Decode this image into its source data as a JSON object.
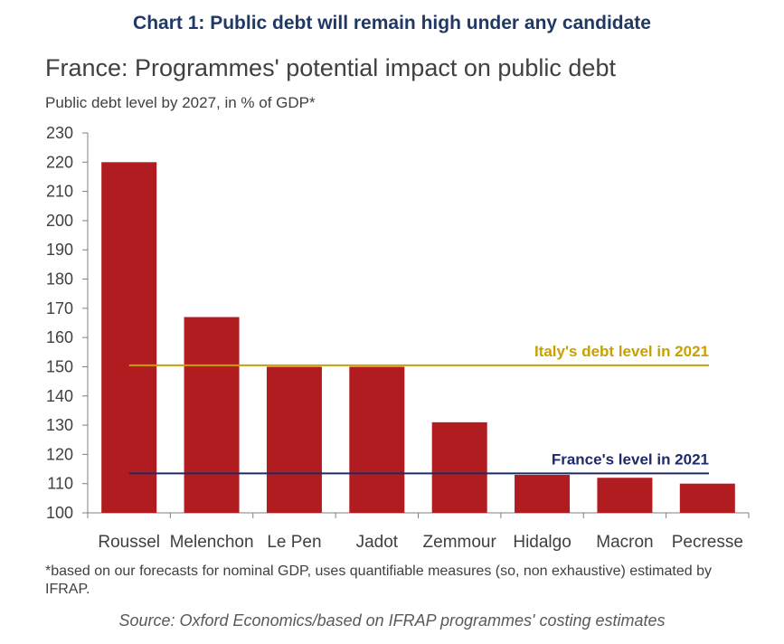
{
  "header": {
    "chart_number_title": "Chart 1: Public debt will remain high under any candidate",
    "subtitle": "France: Programmes' potential impact on public debt",
    "axis_caption": "Public debt level by 2027, in % of GDP*"
  },
  "footer": {
    "footnote": "*based on our forecasts for nominal GDP, uses quantifiable measures (so, non exhaustive) estimated by IFRAP.",
    "source": "Source: Oxford Economics/based on IFRAP programmes' costing estimates"
  },
  "chart_data": {
    "type": "bar",
    "title": "France: Programmes' potential impact on public debt",
    "ylabel": "Public debt level by 2027, in % of GDP*",
    "xlabel": "",
    "categories": [
      "Roussel",
      "Melenchon",
      "Le Pen",
      "Jadot",
      "Zemmour",
      "Hidalgo",
      "Macron",
      "Pecresse"
    ],
    "values": [
      220,
      167,
      150,
      150,
      131,
      113,
      112,
      110
    ],
    "ylim": [
      100,
      230
    ],
    "yticks": [
      100,
      110,
      120,
      130,
      140,
      150,
      160,
      170,
      180,
      190,
      200,
      210,
      220,
      230
    ],
    "grid": false,
    "bar_color": "#b01c1f",
    "reference_lines": [
      {
        "label": "Italy's debt level in 2021",
        "value": 150.5,
        "color": "#c9a000"
      },
      {
        "label": "France's level in 2021",
        "value": 113.5,
        "color": "#1f2a6b"
      }
    ]
  }
}
